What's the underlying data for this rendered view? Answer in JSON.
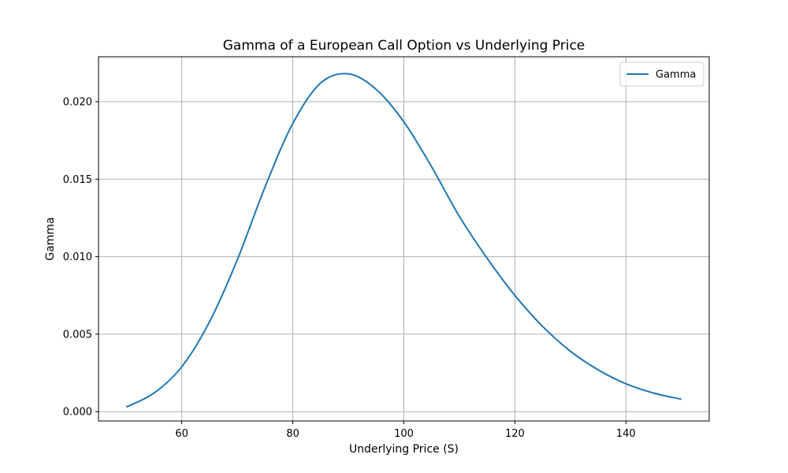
{
  "chart_data": {
    "type": "line",
    "title": "Gamma of a European Call Option vs Underlying Price",
    "xlabel": "Underlying Price (S)",
    "ylabel": "Gamma",
    "xlim": [
      45,
      155
    ],
    "ylim": [
      -0.0006,
      0.0229
    ],
    "xticks": [
      60,
      80,
      100,
      120,
      140
    ],
    "yticks": [
      0.0,
      0.005,
      0.01,
      0.015,
      0.02
    ],
    "ytick_labels": [
      "0.000",
      "0.005",
      "0.010",
      "0.015",
      "0.020"
    ],
    "grid": true,
    "legend_position": "top-right",
    "series": [
      {
        "name": "Gamma",
        "color": "#1f77b4",
        "x": [
          50,
          55,
          60,
          65,
          70,
          75,
          80,
          85,
          90,
          95,
          100,
          105,
          110,
          115,
          120,
          125,
          130,
          135,
          140,
          145,
          150
        ],
        "y": [
          0.0003,
          0.0012,
          0.0029,
          0.0058,
          0.0098,
          0.0145,
          0.0186,
          0.0212,
          0.0218,
          0.0208,
          0.0187,
          0.0158,
          0.0126,
          0.0099,
          0.0075,
          0.0055,
          0.0039,
          0.0027,
          0.0018,
          0.0012,
          0.0008
        ]
      }
    ]
  }
}
